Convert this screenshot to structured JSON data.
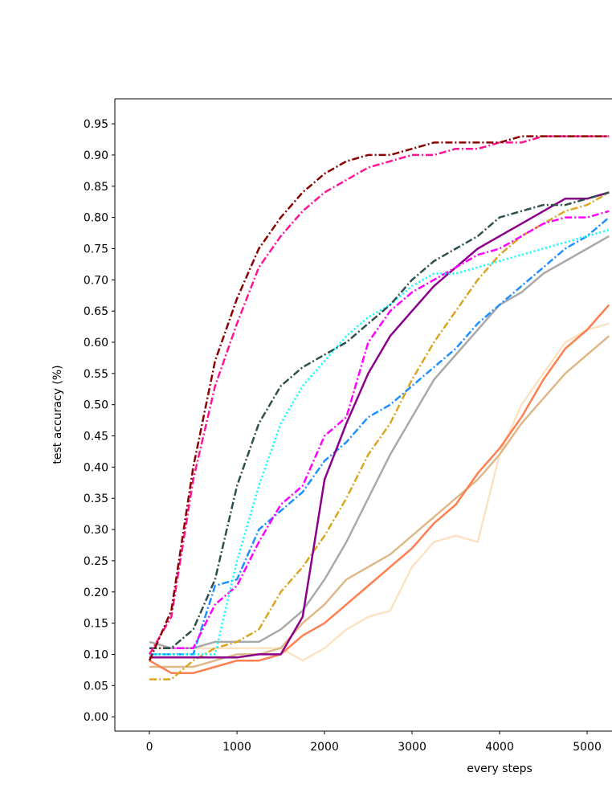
{
  "chart_data": {
    "type": "line",
    "x_label": "every steps",
    "y_label": "test accuracy (%)",
    "xlim": [
      -395,
      5284
    ],
    "ylim": [
      -0.023,
      0.99
    ],
    "xticks": [
      0,
      1000,
      2000,
      3000,
      4000,
      5000
    ],
    "yticks": [
      {
        "value": 0,
        "label": "0.00"
      },
      0.05,
      {
        "value": 0.1,
        "label": "0.10"
      },
      0.15,
      {
        "value": 0.2,
        "label": "0.20"
      },
      0.25,
      {
        "value": 0.3,
        "label": "0.30"
      },
      0.35,
      {
        "value": 0.4,
        "label": "0.40"
      },
      0.45,
      {
        "value": 0.5,
        "label": "0.50"
      },
      0.55,
      {
        "value": 0.6,
        "label": "0.60"
      },
      0.65,
      {
        "value": 0.7,
        "label": "0.70"
      },
      0.75,
      {
        "value": 0.8,
        "label": "0.80"
      },
      0.85,
      {
        "value": 0.9,
        "label": "0.90"
      },
      0.95
    ],
    "grid": false,
    "x": [
      0,
      250,
      500,
      750,
      1000,
      1250,
      1500,
      1750,
      2000,
      2250,
      2500,
      2750,
      3000,
      3250,
      3500,
      3750,
      4000,
      4250,
      4500,
      4750,
      5000,
      5250
    ],
    "series": [
      {
        "color": "#fbe3c4",
        "dash": "solid",
        "values": [
          0.11,
          0.11,
          0.11,
          0.11,
          0.11,
          0.11,
          0.11,
          0.09,
          0.11,
          0.14,
          0.16,
          0.17,
          0.24,
          0.28,
          0.29,
          0.28,
          0.42,
          0.5,
          0.55,
          0.6,
          0.62,
          0.63
        ]
      },
      {
        "color": "#deb887",
        "dash": "solid",
        "values": [
          0.08,
          0.08,
          0.08,
          0.09,
          0.1,
          0.1,
          0.11,
          0.15,
          0.18,
          0.22,
          0.24,
          0.26,
          0.29,
          0.32,
          0.35,
          0.38,
          0.42,
          0.47,
          0.51,
          0.55,
          0.58,
          0.61
        ]
      },
      {
        "color": "#ff7f50",
        "dash": "solid",
        "values": [
          0.09,
          0.07,
          0.07,
          0.08,
          0.09,
          0.09,
          0.1,
          0.13,
          0.15,
          0.18,
          0.21,
          0.24,
          0.27,
          0.31,
          0.34,
          0.39,
          0.43,
          0.48,
          0.54,
          0.59,
          0.62,
          0.66
        ]
      },
      {
        "color": "#a9a9a9",
        "dash": "solid",
        "values": [
          0.12,
          0.11,
          0.11,
          0.12,
          0.12,
          0.12,
          0.14,
          0.17,
          0.22,
          0.28,
          0.35,
          0.42,
          0.48,
          0.54,
          0.58,
          0.62,
          0.66,
          0.68,
          0.71,
          0.73,
          0.75,
          0.77
        ]
      },
      {
        "color": "#daa520",
        "dash": "dashdot",
        "values": [
          0.06,
          0.06,
          0.09,
          0.11,
          0.12,
          0.14,
          0.2,
          0.24,
          0.29,
          0.35,
          0.42,
          0.47,
          0.54,
          0.6,
          0.65,
          0.7,
          0.74,
          0.77,
          0.79,
          0.81,
          0.82,
          0.84
        ]
      },
      {
        "color": "#1e90ff",
        "dash": "dashdot",
        "values": [
          0.1,
          0.1,
          0.1,
          0.21,
          0.22,
          0.3,
          0.33,
          0.36,
          0.41,
          0.44,
          0.48,
          0.5,
          0.53,
          0.56,
          0.59,
          0.63,
          0.66,
          0.69,
          0.72,
          0.75,
          0.77,
          0.8
        ]
      },
      {
        "color": "#8b008b",
        "dash": "solid",
        "values": [
          0.095,
          0.095,
          0.095,
          0.095,
          0.095,
          0.1,
          0.1,
          0.16,
          0.38,
          0.47,
          0.55,
          0.61,
          0.65,
          0.69,
          0.72,
          0.75,
          0.77,
          0.79,
          0.81,
          0.83,
          0.83,
          0.84
        ]
      },
      {
        "color": "#ff00ff",
        "dash": "dashdot",
        "values": [
          0.11,
          0.11,
          0.11,
          0.18,
          0.21,
          0.28,
          0.34,
          0.37,
          0.45,
          0.48,
          0.6,
          0.65,
          0.68,
          0.7,
          0.72,
          0.74,
          0.75,
          0.77,
          0.79,
          0.8,
          0.8,
          0.81
        ]
      },
      {
        "color": "#00ffff",
        "dash": "dotted",
        "values": [
          0.1,
          0.1,
          0.1,
          0.1,
          0.25,
          0.37,
          0.47,
          0.53,
          0.57,
          0.61,
          0.64,
          0.66,
          0.69,
          0.71,
          0.71,
          0.72,
          0.73,
          0.74,
          0.75,
          0.76,
          0.77,
          0.78
        ]
      },
      {
        "color": "#2f4f4f",
        "dash": "dashdot",
        "values": [
          0.11,
          0.11,
          0.14,
          0.22,
          0.37,
          0.47,
          0.53,
          0.56,
          0.58,
          0.6,
          0.63,
          0.66,
          0.7,
          0.73,
          0.75,
          0.77,
          0.8,
          0.81,
          0.82,
          0.82,
          0.83,
          0.84
        ]
      },
      {
        "color": "#ff1493",
        "dash": "dashdot",
        "values": [
          0.1,
          0.16,
          0.38,
          0.53,
          0.63,
          0.72,
          0.77,
          0.81,
          0.84,
          0.86,
          0.88,
          0.89,
          0.9,
          0.9,
          0.91,
          0.91,
          0.92,
          0.92,
          0.93,
          0.93,
          0.93,
          0.93
        ]
      },
      {
        "color": "#8b0000",
        "dash": "dashdot",
        "values": [
          0.09,
          0.17,
          0.4,
          0.57,
          0.67,
          0.75,
          0.8,
          0.84,
          0.87,
          0.89,
          0.9,
          0.9,
          0.91,
          0.92,
          0.92,
          0.92,
          0.92,
          0.93,
          0.93,
          0.93,
          0.93,
          0.93
        ]
      }
    ]
  }
}
